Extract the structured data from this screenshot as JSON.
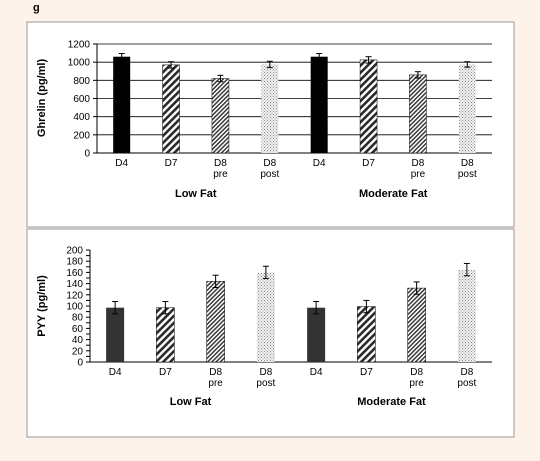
{
  "chart_data": [
    {
      "type": "bar",
      "ylabel": "Ghrelin (pg/ml)",
      "ylim": [
        0,
        1200
      ],
      "yticks": [
        0,
        200,
        400,
        600,
        800,
        1000,
        1200
      ],
      "grid": true,
      "categories": [
        [
          "D4"
        ],
        [
          "D7"
        ],
        [
          "D8",
          "pre"
        ],
        [
          "D8",
          "post"
        ],
        [
          "D4"
        ],
        [
          "D7"
        ],
        [
          "D8",
          "pre"
        ],
        [
          "D8",
          "post"
        ]
      ],
      "groups": [
        "Low Fat",
        "Moderate Fat"
      ],
      "values": [
        1060,
        970,
        820,
        975,
        1060,
        1025,
        860,
        975
      ],
      "errors": [
        35,
        35,
        35,
        35,
        35,
        35,
        35,
        30
      ],
      "patterns": [
        "solid",
        "diag",
        "diag-dense",
        "dots",
        "solid",
        "diag",
        "diag-dense",
        "dots"
      ],
      "bar_color": "#000000"
    },
    {
      "type": "bar",
      "ylabel": "PYY (pg/ml)",
      "ylim": [
        0,
        200
      ],
      "yticks": [
        0,
        10,
        20,
        30,
        40,
        50,
        60,
        70,
        80,
        90,
        100,
        110,
        120,
        130,
        140,
        150,
        160,
        170,
        180,
        190,
        200
      ],
      "tick_labels_every": 20,
      "grid": false,
      "categories": [
        [
          "D4"
        ],
        [
          "D7"
        ],
        [
          "D8",
          "pre"
        ],
        [
          "D8",
          "post"
        ],
        [
          "D4"
        ],
        [
          "D7"
        ],
        [
          "D8",
          "pre"
        ],
        [
          "D8",
          "post"
        ]
      ],
      "groups": [
        "Low Fat",
        "Moderate Fat"
      ],
      "values": [
        97,
        97,
        144,
        160,
        97,
        99,
        132,
        165
      ],
      "errors": [
        11,
        11,
        11,
        11,
        11,
        11,
        11,
        11
      ],
      "patterns": [
        "solid",
        "diag",
        "diag-dense",
        "dots",
        "solid",
        "diag",
        "diag-dense",
        "dots"
      ],
      "bar_color": "#333333"
    }
  ],
  "corner_mark": "g"
}
